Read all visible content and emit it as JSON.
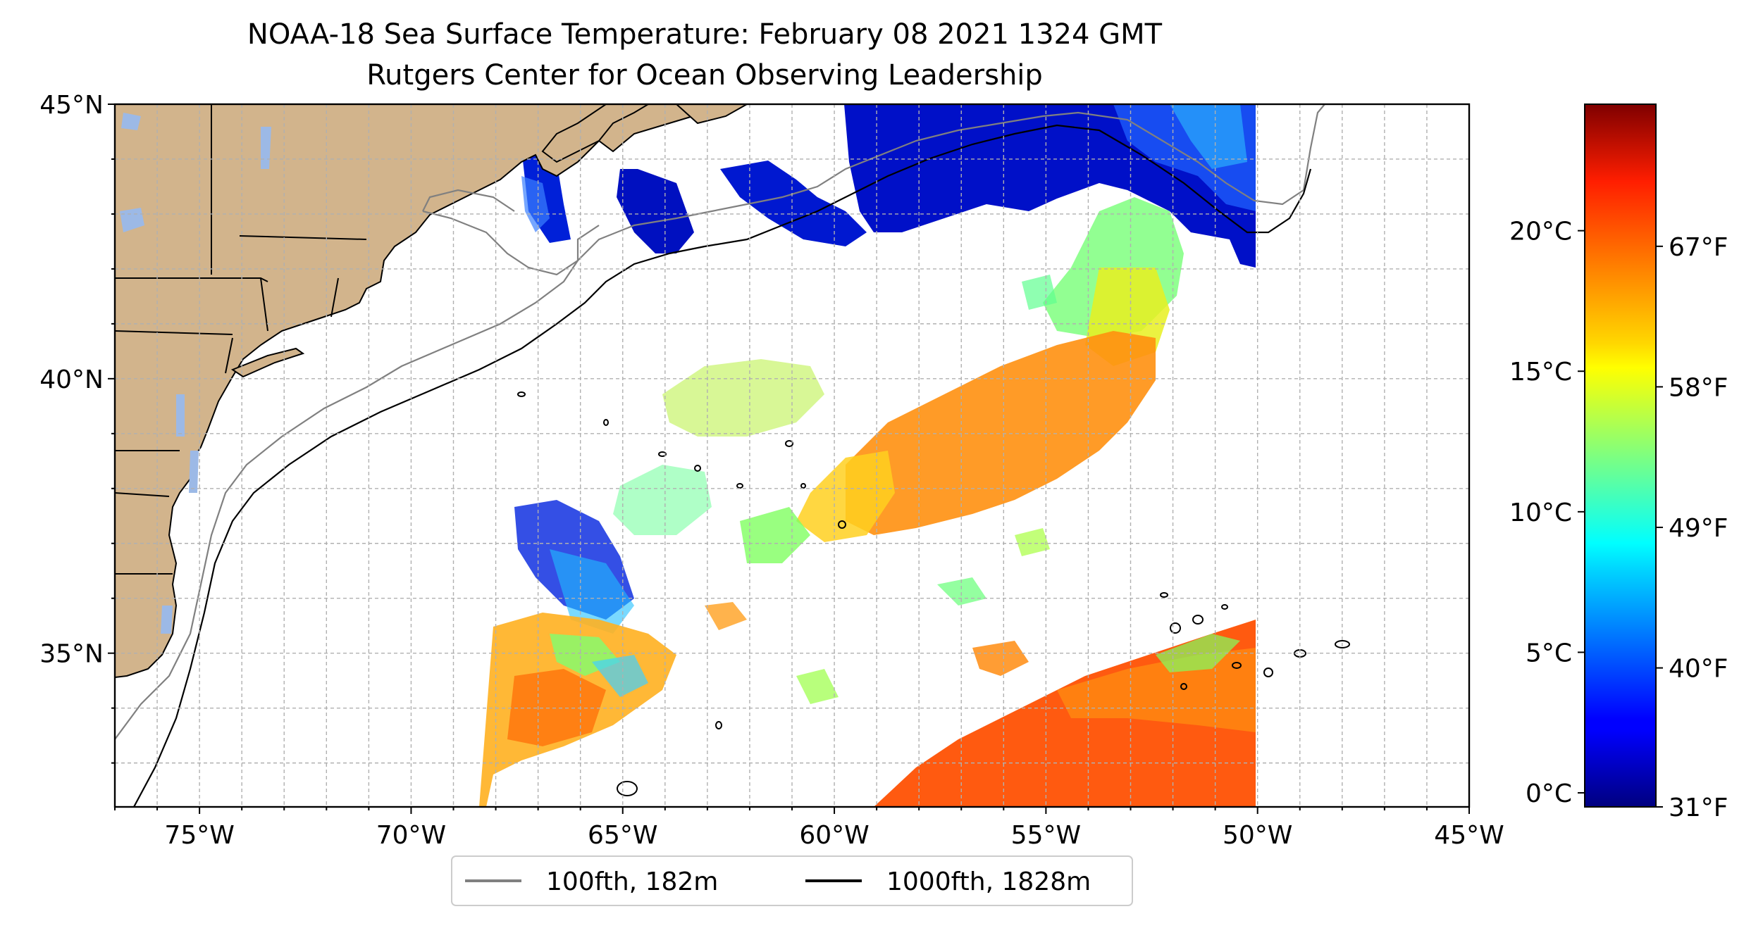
{
  "title": {
    "line1": "NOAA-18 Sea Surface Temperature: February 08 2021 1324 GMT",
    "line2": "Rutgers Center for Ocean Observing Leadership"
  },
  "map": {
    "lon_range": [
      -77,
      -45
    ],
    "lat_range": [
      32.2,
      45
    ],
    "lon_ticks": [
      {
        "value": -75,
        "label": "75°W"
      },
      {
        "value": -70,
        "label": "70°W"
      },
      {
        "value": -65,
        "label": "65°W"
      },
      {
        "value": -60,
        "label": "60°W"
      },
      {
        "value": -55,
        "label": "55°W"
      },
      {
        "value": -50,
        "label": "50°W"
      },
      {
        "value": -45,
        "label": "45°W"
      }
    ],
    "lat_ticks": [
      {
        "value": 45,
        "label": "45°N"
      },
      {
        "value": 40,
        "label": "40°N"
      },
      {
        "value": 35,
        "label": "35°N"
      }
    ],
    "grid": true,
    "land_color": "#d2b48c",
    "lake_color": "#9cb9e6"
  },
  "legend": {
    "placement": "below map",
    "items": [
      {
        "label": "100fth, 182m",
        "color": "#808080"
      },
      {
        "label": "1000fth, 1828m",
        "color": "#000000"
      }
    ]
  },
  "colorbar": {
    "colormap": "jet",
    "range_c": [
      -0.5,
      24.5
    ],
    "celsius_ticks": [
      {
        "value": 0,
        "label": "0°C"
      },
      {
        "value": 5,
        "label": "5°C"
      },
      {
        "value": 10,
        "label": "10°C"
      },
      {
        "value": 15,
        "label": "15°C"
      },
      {
        "value": 20,
        "label": "20°C"
      }
    ],
    "fahrenheit_ticks": [
      {
        "value": 31,
        "label": "31°F"
      },
      {
        "value": 40,
        "label": "40°F"
      },
      {
        "value": 49,
        "label": "49°F"
      },
      {
        "value": 58,
        "label": "58°F"
      },
      {
        "value": 67,
        "label": "67°F"
      }
    ]
  }
}
